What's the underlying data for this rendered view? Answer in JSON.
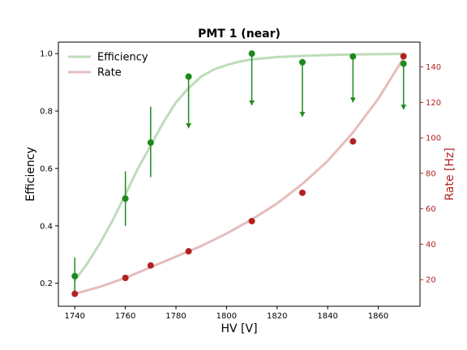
{
  "chart_data": {
    "type": "scatter",
    "title": "PMT 1 (near)",
    "xlabel": "HV [V]",
    "ylabel_left": "Efficiency",
    "ylabel_right": "Rate [Hz]",
    "xlim": [
      1733.5,
      1876.5
    ],
    "ylim_left": [
      0.12,
      1.04
    ],
    "ylim_right": [
      5,
      154
    ],
    "x_ticks": [
      1740,
      1760,
      1780,
      1800,
      1820,
      1840,
      1860
    ],
    "y_left_ticks": [
      0.2,
      0.4,
      0.6,
      0.8,
      1.0
    ],
    "y_right_ticks": [
      20,
      40,
      60,
      80,
      100,
      120,
      140
    ],
    "legend_position": "top-left",
    "colors": {
      "efficiency_points": "#1e8a1e",
      "efficiency_fit": "#bddcb9",
      "rate_points": "#b22222",
      "rate_fit": "#e6bcbc",
      "right_axis": "#b22222"
    },
    "series": [
      {
        "name": "Efficiency",
        "axis": "left",
        "x": [
          1740,
          1760,
          1770,
          1785,
          1810,
          1830,
          1850,
          1870
        ],
        "y": [
          0.225,
          0.495,
          0.69,
          0.92,
          1.0,
          0.97,
          0.99,
          0.965
        ],
        "err_low": [
          0.06,
          0.095,
          0.12,
          0.18,
          0.18,
          0.19,
          0.16,
          0.16
        ],
        "err_high": [
          0.065,
          0.095,
          0.125,
          0.0,
          0.0,
          0.0,
          0.0,
          0.0
        ]
      },
      {
        "name": "Rate",
        "axis": "right",
        "x": [
          1740,
          1760,
          1770,
          1785,
          1810,
          1830,
          1850,
          1870
        ],
        "y": [
          12,
          21,
          28,
          36,
          53,
          69,
          98,
          146
        ]
      }
    ],
    "fits": [
      {
        "name": "Efficiency",
        "axis": "left",
        "x": [
          1740,
          1745,
          1750,
          1755,
          1760,
          1765,
          1770,
          1775,
          1780,
          1785,
          1790,
          1795,
          1800,
          1805,
          1810,
          1820,
          1830,
          1840,
          1850,
          1860,
          1870
        ],
        "y": [
          0.21,
          0.27,
          0.34,
          0.42,
          0.51,
          0.6,
          0.68,
          0.76,
          0.83,
          0.88,
          0.92,
          0.945,
          0.96,
          0.972,
          0.98,
          0.988,
          0.992,
          0.995,
          0.997,
          0.998,
          0.999
        ]
      },
      {
        "name": "Rate",
        "axis": "right",
        "x": [
          1740,
          1750,
          1760,
          1770,
          1780,
          1790,
          1800,
          1810,
          1820,
          1830,
          1840,
          1850,
          1860,
          1870
        ],
        "y": [
          12,
          16,
          21,
          27,
          33,
          39,
          46,
          54,
          63,
          74,
          87,
          103,
          122,
          145
        ]
      }
    ]
  }
}
